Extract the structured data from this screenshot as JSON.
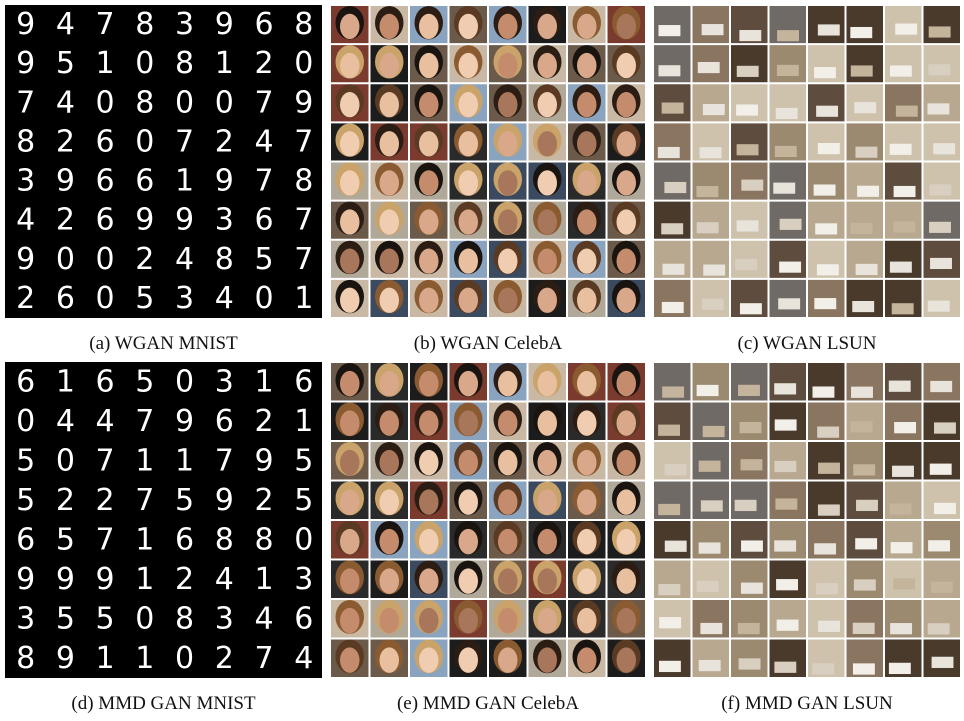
{
  "panels": [
    {
      "caption": "(a) WGAN MNIST",
      "digits": [
        "94783968",
        "95108120",
        "74080079",
        "82607247",
        "39661978",
        "42699367",
        "90024857",
        "26053401"
      ]
    },
    {
      "caption": "(b) WGAN CelebA"
    },
    {
      "caption": "(c) WGAN LSUN"
    },
    {
      "caption": "(d) MMD GAN MNIST",
      "digits": [
        "61650316",
        "04479621",
        "50711795",
        "52275925",
        "65716880",
        "99912413",
        "35508346",
        "89110274"
      ]
    },
    {
      "caption": "(e) MMD GAN CelebA"
    },
    {
      "caption": "(f) MMD GAN LSUN"
    }
  ]
}
